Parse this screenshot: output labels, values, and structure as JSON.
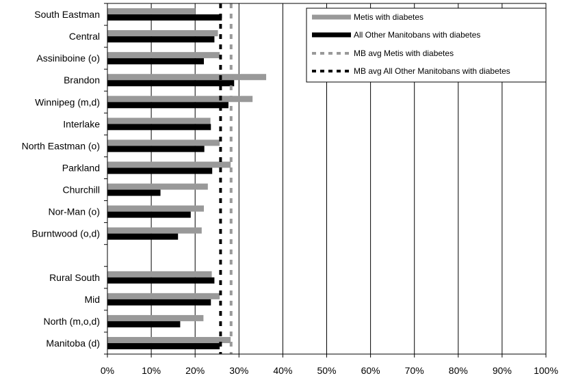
{
  "chart_data": {
    "type": "bar",
    "orientation": "horizontal",
    "categories": [
      "South Eastman",
      "Central",
      "Assiniboine (o)",
      "Brandon",
      "Winnipeg (m,d)",
      "Interlake",
      "North Eastman (o)",
      "Parkland",
      "Churchill",
      "Nor-Man (o)",
      "Burntwood (o,d)",
      "",
      "Rural South",
      "Mid",
      "North (m,o,d)",
      "Manitoba (d)"
    ],
    "series": [
      {
        "name": "Metis with diabetes",
        "color": "#999999",
        "values": [
          20.0,
          25.2,
          25.6,
          36.2,
          33.1,
          23.5,
          25.6,
          28.1,
          22.9,
          22.0,
          21.5,
          null,
          23.8,
          25.6,
          21.9,
          28.1
        ]
      },
      {
        "name": "All Other Manitobans with diabetes",
        "color": "#000000",
        "values": [
          26.1,
          24.4,
          22.0,
          28.9,
          27.6,
          23.6,
          22.1,
          23.9,
          12.1,
          19.0,
          16.1,
          null,
          24.4,
          23.6,
          16.6,
          25.6
        ]
      }
    ],
    "reference_lines": [
      {
        "name": "MB avg Metis with diabetes",
        "value": 28.2,
        "color": "#999999",
        "style": "dashed"
      },
      {
        "name": "MB avg All Other Manitobans with diabetes",
        "value": 25.8,
        "color": "#000000",
        "style": "dashed"
      }
    ],
    "xlim": [
      0,
      100
    ],
    "xticks": [
      "0%",
      "10%",
      "20%",
      "30%",
      "40%",
      "50%",
      "60%",
      "70%",
      "80%",
      "90%",
      "100%"
    ],
    "grid": "vertical",
    "legend_position": "top-right",
    "title": "",
    "xlabel": "",
    "ylabel": ""
  }
}
